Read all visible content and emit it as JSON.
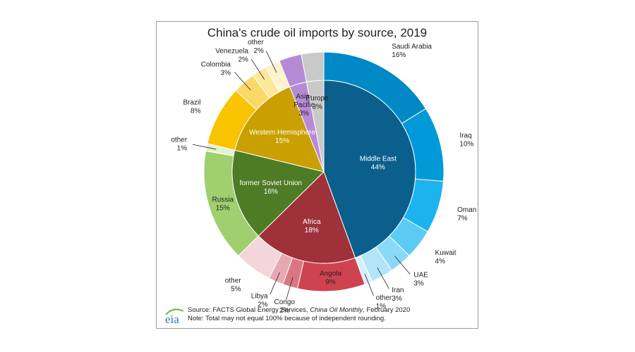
{
  "chart_data": {
    "type": "pie",
    "title": "China's crude oil imports by source, 2019",
    "inner_ring": [
      {
        "name": "Middle East",
        "value": 44,
        "label": "44%",
        "color": "#0a5f8c"
      },
      {
        "name": "Africa",
        "value": 18,
        "label": "18%",
        "color": "#9e3139"
      },
      {
        "name": "former Soviet Union",
        "value": 16,
        "label": "16%",
        "color": "#4e7c25"
      },
      {
        "name": "Western Hemisphere",
        "value": 15,
        "label": "15%",
        "color": "#c9a000"
      },
      {
        "name": "Asia-Pacific",
        "value": 3,
        "label": "3%",
        "color": "#b68bd6"
      },
      {
        "name": "Europe",
        "value": 3,
        "label": "3%",
        "color": "#c9c9c9"
      }
    ],
    "outer_ring": [
      {
        "name": "Saudi Arabia",
        "value": 16,
        "label": "16%",
        "color": "#0089c4"
      },
      {
        "name": "Iraq",
        "value": 10,
        "label": "10%",
        "color": "#009ad8"
      },
      {
        "name": "Oman",
        "value": 7,
        "label": "7%",
        "color": "#1cb3ee"
      },
      {
        "name": "Kuwait",
        "value": 4,
        "label": "4%",
        "color": "#5ccbf4"
      },
      {
        "name": "UAE",
        "value": 3,
        "label": "3%",
        "color": "#8ad9f7"
      },
      {
        "name": "Iran",
        "value": 3,
        "label": "3%",
        "color": "#b3e5f9"
      },
      {
        "name": "other",
        "value": 1,
        "label": "1%",
        "color": "#d6f0fb"
      },
      {
        "name": "Angola",
        "value": 9,
        "label": "9%",
        "color": "#cf4351"
      },
      {
        "name": "Congo",
        "value": 2,
        "label": "2%",
        "color": "#da7683"
      },
      {
        "name": "Libya",
        "value": 2,
        "label": "2%",
        "color": "#e7a9b1"
      },
      {
        "name": "other",
        "value": 5,
        "label": "5%",
        "color": "#f3d6d9"
      },
      {
        "name": "Russia",
        "value": 15,
        "label": "15%",
        "color": "#9fcf6e"
      },
      {
        "name": "other",
        "value": 1,
        "label": "1%",
        "color": "#e4f1d2"
      },
      {
        "name": "Brazil",
        "value": 8,
        "label": "8%",
        "color": "#f8c400"
      },
      {
        "name": "Colombia",
        "value": 3,
        "label": "3%",
        "color": "#fbd966"
      },
      {
        "name": "Venezuela",
        "value": 2,
        "label": "2%",
        "color": "#fde89a"
      },
      {
        "name": "other",
        "value": 2,
        "label": "2%",
        "color": "#fef3cf"
      },
      {
        "name": "Asia-Pacific",
        "value": 3,
        "label": "3%",
        "color": "#b68bd6"
      },
      {
        "name": "Europe",
        "value": 3,
        "label": "3%",
        "color": "#c9c9c9"
      }
    ]
  },
  "footer": {
    "logo_text": "eia",
    "source_prefix": "Source: FACTS Global Energy Services, ",
    "source_publication": "China Oil Monthly",
    "source_suffix": ", February 2020",
    "note": "Note: Total may not equal 100% because of independent rounding."
  },
  "colors": {
    "logo_blue": "#2a7ab8",
    "logo_green": "#7cb342"
  }
}
